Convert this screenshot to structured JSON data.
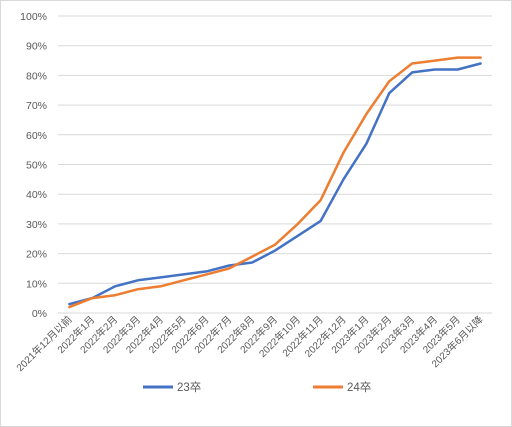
{
  "chart_data": {
    "type": "line",
    "title": "",
    "xlabel": "",
    "ylabel": "",
    "categories": [
      "2021年12月以前",
      "2022年1月",
      "2022年2月",
      "2022年3月",
      "2022年4月",
      "2022年5月",
      "2022年6月",
      "2022年7月",
      "2022年8月",
      "2022年9月",
      "2022年10月",
      "2022年11月",
      "2022年12月",
      "2023年1月",
      "2023年2月",
      "2023年3月",
      "2023年4月",
      "2023年5月",
      "2023年6月以降"
    ],
    "ylim": [
      0,
      100
    ],
    "yticks": [
      "0%",
      "10%",
      "20%",
      "30%",
      "40%",
      "50%",
      "60%",
      "70%",
      "80%",
      "90%",
      "100%"
    ],
    "grid": true,
    "legend_position": "bottom",
    "series": [
      {
        "name": "23卒",
        "color": "#4472C4",
        "values": [
          3,
          5,
          9,
          11,
          12,
          13,
          14,
          16,
          17,
          21,
          26,
          31,
          45,
          57,
          74,
          81,
          82,
          82,
          84
        ]
      },
      {
        "name": "24卒",
        "color": "#ED7D31",
        "values": [
          2,
          5,
          6,
          8,
          9,
          11,
          13,
          15,
          19,
          23,
          30,
          38,
          54,
          67,
          78,
          84,
          85,
          86,
          86
        ]
      }
    ]
  }
}
